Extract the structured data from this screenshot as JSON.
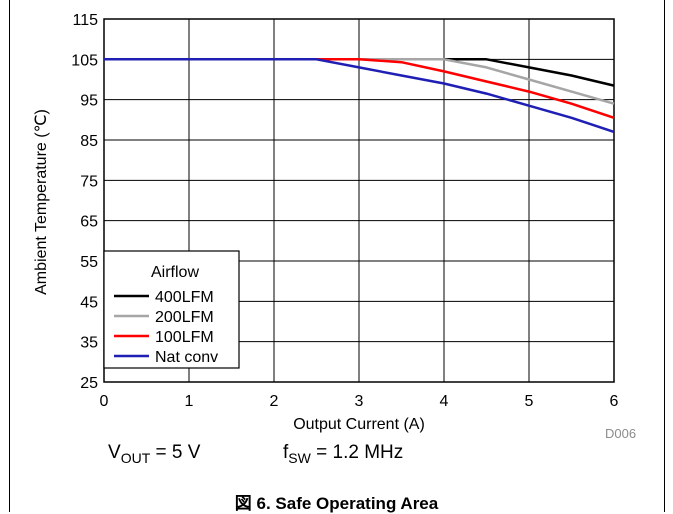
{
  "chart_data": {
    "type": "line",
    "xlabel": "Output Current (A)",
    "ylabel": "Ambient Temperature (℃)",
    "xlim": [
      0,
      6
    ],
    "ylim": [
      25,
      115
    ],
    "xticks": [
      0,
      1,
      2,
      3,
      4,
      5,
      6
    ],
    "yticks": [
      25,
      35,
      45,
      55,
      65,
      75,
      85,
      95,
      105,
      115
    ],
    "grid": true,
    "legend": {
      "title": "Airflow",
      "placement": "bottom-left"
    },
    "series": [
      {
        "name": "400LFM",
        "color": "#000000",
        "x": [
          0,
          2.5,
          3,
          3.5,
          4,
          4.5,
          5,
          5.5,
          6
        ],
        "y": [
          105,
          105,
          105,
          105,
          105,
          105,
          103,
          101,
          98.5
        ]
      },
      {
        "name": "200LFM",
        "color": "#a6a6a6",
        "x": [
          0,
          2.5,
          3,
          3.5,
          4,
          4.5,
          5,
          5.5,
          6
        ],
        "y": [
          105,
          105,
          105,
          105,
          105,
          103,
          100,
          97,
          94
        ]
      },
      {
        "name": "100LFM",
        "color": "#ff0000",
        "x": [
          0,
          2.5,
          3,
          3.5,
          4,
          4.5,
          5,
          5.5,
          6
        ],
        "y": [
          105,
          105,
          105,
          104.3,
          102,
          99.5,
          97,
          94,
          90.5
        ]
      },
      {
        "name": "Nat conv",
        "color": "#1f1fb4",
        "x": [
          0,
          2.5,
          3,
          3.5,
          4,
          4.5,
          5,
          5.5,
          6
        ],
        "y": [
          105,
          105,
          103,
          101,
          99,
          96.5,
          93.5,
          90.5,
          87
        ]
      }
    ]
  },
  "notes": {
    "vout_main": "V",
    "vout_sub": "OUT",
    "vout_value": " = 5 V",
    "fsw_main": "f",
    "fsw_sub": "SW",
    "fsw_value": " = 1.2 MHz"
  },
  "figure_code": "D006",
  "caption": "図 6. Safe Operating Area"
}
